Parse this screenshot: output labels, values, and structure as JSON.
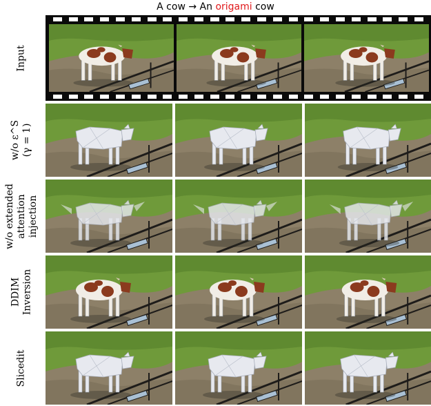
{
  "header": {
    "title_prefix": "A cow → An ",
    "title_highlight": "origami",
    "title_suffix": " cow",
    "highlight_color": "#e0191b"
  },
  "rows": [
    {
      "label_lines": [
        "Input"
      ],
      "cow_style": "spotted"
    },
    {
      "label_lines": [
        "w/o ε^S",
        "(γ = 1)"
      ],
      "cow_style": "origami"
    },
    {
      "label_lines": [
        "w/o extended",
        "attention",
        "injection"
      ],
      "cow_style": "blurred-origami"
    },
    {
      "label_lines": [
        "DDIM",
        "Inversion"
      ],
      "cow_style": "spotted"
    },
    {
      "label_lines": [
        "Slicedit"
      ],
      "cow_style": "origami"
    }
  ],
  "palette": {
    "grass": "#6f9a3a",
    "grass_dark": "#4f7a26",
    "dirt": "#8d8068",
    "cow_white": "#f1ede6",
    "cow_brown": "#8b3a1e",
    "origami": "#e7e9ef",
    "fence": "#1e1c1a",
    "water": "#a9c0d4"
  }
}
